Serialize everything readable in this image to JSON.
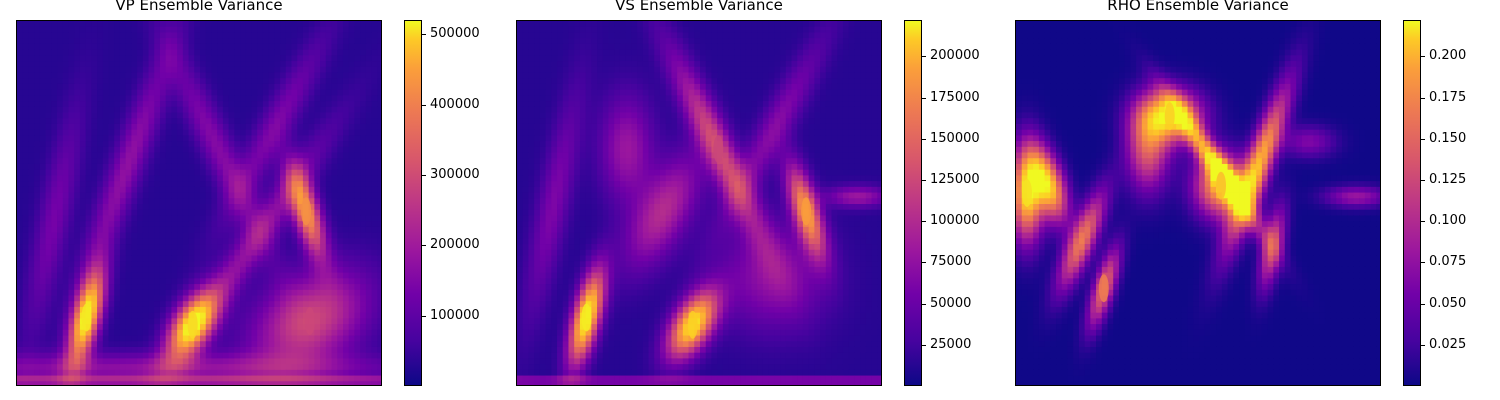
{
  "chart_data": [
    {
      "type": "heatmap",
      "title": "VP Ensemble Variance",
      "colormap": "plasma",
      "colorbar": {
        "min": 0,
        "max": 520000,
        "ticks": [
          100000,
          200000,
          300000,
          400000,
          500000
        ],
        "tick_labels": [
          "100000",
          "200000",
          "300000",
          "400000",
          "500000"
        ]
      },
      "axes_visible": false,
      "grid": [
        64,
        64
      ],
      "hotspots": [
        {
          "x": 0.19,
          "y": 0.81,
          "value": 500000
        },
        {
          "x": 0.48,
          "y": 0.83,
          "value": 480000
        },
        {
          "x": 0.79,
          "y": 0.52,
          "value": 380000
        },
        {
          "x": 0.8,
          "y": 0.82,
          "value": 260000
        }
      ]
    },
    {
      "type": "heatmap",
      "title": "VS Ensemble Variance",
      "colormap": "plasma",
      "colorbar": {
        "min": 0,
        "max": 222000,
        "ticks": [
          25000,
          50000,
          75000,
          100000,
          125000,
          150000,
          175000,
          200000
        ],
        "tick_labels": [
          "25000",
          "50000",
          "75000",
          "100000",
          "125000",
          "150000",
          "175000",
          "200000"
        ]
      },
      "axes_visible": false,
      "grid": [
        64,
        64
      ],
      "hotspots": [
        {
          "x": 0.19,
          "y": 0.81,
          "value": 215000
        },
        {
          "x": 0.48,
          "y": 0.83,
          "value": 200000
        },
        {
          "x": 0.79,
          "y": 0.52,
          "value": 170000
        },
        {
          "x": 0.55,
          "y": 0.35,
          "value": 110000
        }
      ]
    },
    {
      "type": "heatmap",
      "title": "RHO Ensemble Variance",
      "colormap": "plasma",
      "colorbar": {
        "min": 0,
        "max": 0.222,
        "ticks": [
          0.025,
          0.05,
          0.075,
          0.1,
          0.125,
          0.15,
          0.175,
          0.2
        ],
        "tick_labels": [
          "0.025",
          "0.050",
          "0.075",
          "0.100",
          "0.125",
          "0.150",
          "0.175",
          "0.200"
        ]
      },
      "axes_visible": false,
      "grid": [
        64,
        64
      ],
      "hotspots": [
        {
          "x": 0.03,
          "y": 0.47,
          "value": 0.21
        },
        {
          "x": 0.42,
          "y": 0.26,
          "value": 0.2
        },
        {
          "x": 0.56,
          "y": 0.45,
          "value": 0.19
        },
        {
          "x": 0.24,
          "y": 0.73,
          "value": 0.15
        }
      ]
    }
  ]
}
